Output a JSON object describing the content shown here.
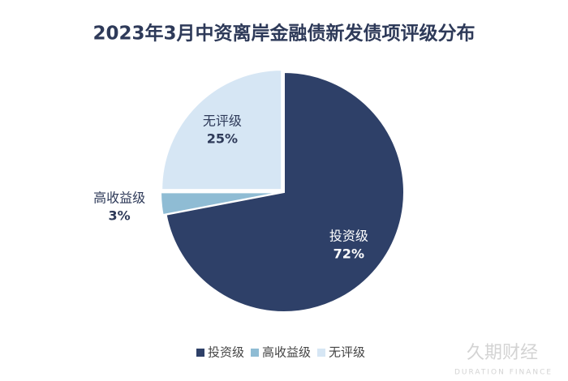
{
  "chart_data": {
    "type": "pie",
    "title": "2023年3月中资离岸金融债新发债项评级分布",
    "categories": [
      "投资级",
      "高收益级",
      "无评级"
    ],
    "values": [
      72,
      3,
      25
    ],
    "value_labels": [
      "72%",
      "3%",
      "25%"
    ],
    "colors": [
      "#2e4068",
      "#8fbcd4",
      "#d6e6f4"
    ],
    "legend": "bottom"
  },
  "watermark": {
    "text": "久期财经",
    "subtitle": "DURATION FINANCE"
  }
}
